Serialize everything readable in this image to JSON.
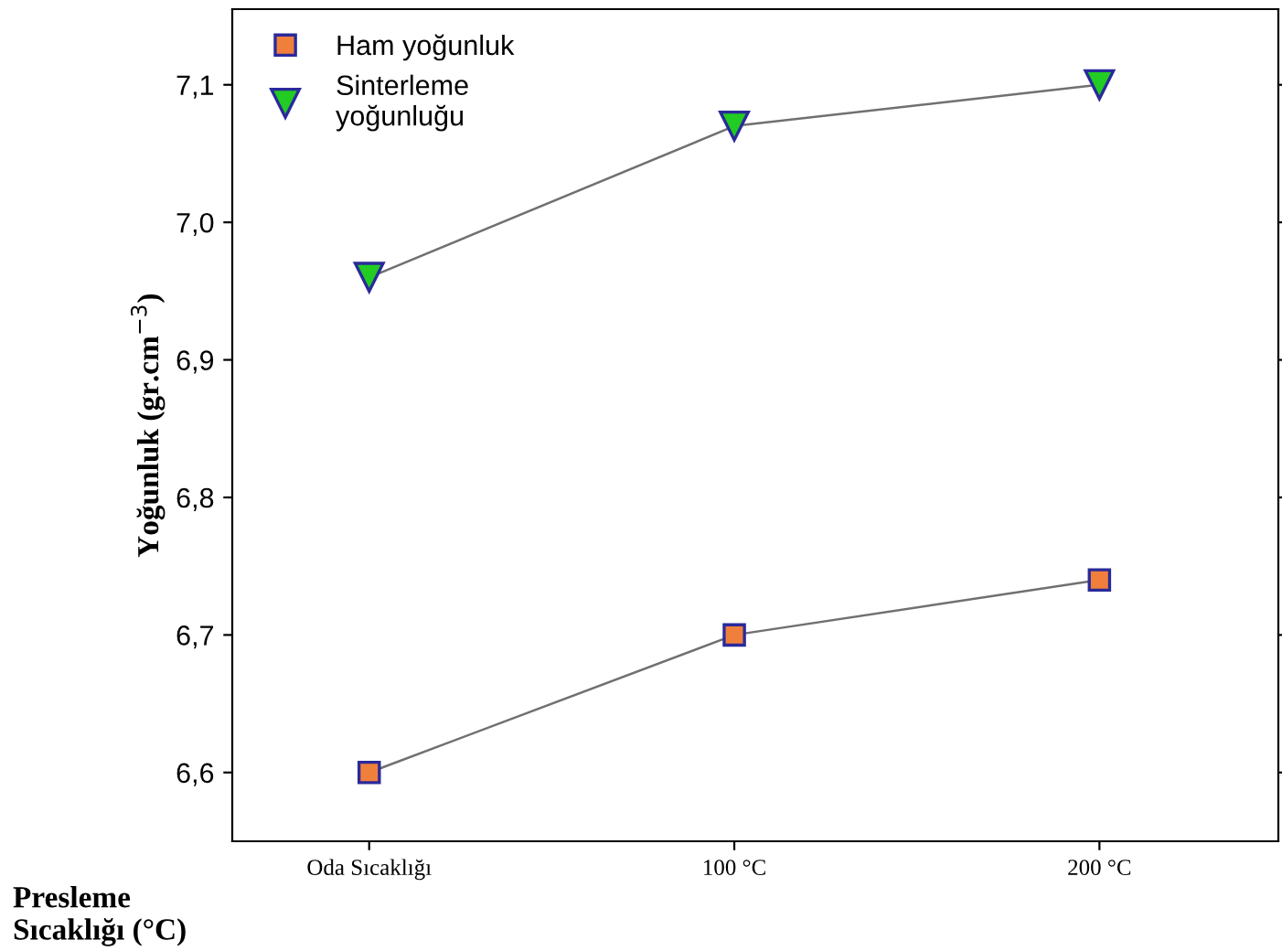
{
  "chart_data": {
    "type": "line",
    "xlabel": "Presleme\nSıcaklığı (°C)",
    "ylabel": "Yoğunluk (gr.cm$^{−3}$)",
    "categories": [
      "Oda Sıcaklığı",
      "100 °C",
      "200 °C"
    ],
    "series": [
      {
        "name": "Ham yoğunluk",
        "color": "#f07f3c",
        "marker": "square",
        "values": [
          6.6,
          6.7,
          6.74
        ]
      },
      {
        "name": "Sinterleme\nyoğunluğu",
        "color": "#22cc22",
        "marker": "triangle",
        "values": [
          6.96,
          7.07,
          7.1
        ]
      }
    ],
    "ylim": [
      6.55,
      7.155
    ],
    "yticks": [
      {
        "value": 6.6,
        "label": "6,6"
      },
      {
        "value": 6.7,
        "label": "6,7"
      },
      {
        "value": 6.8,
        "label": "6,8"
      },
      {
        "value": 6.9,
        "label": "6,9"
      },
      {
        "value": 7.0,
        "label": "7,0"
      },
      {
        "value": 7.1,
        "label": "7,1"
      }
    ],
    "grid": false,
    "legend": "top left",
    "line_style": "solid"
  }
}
